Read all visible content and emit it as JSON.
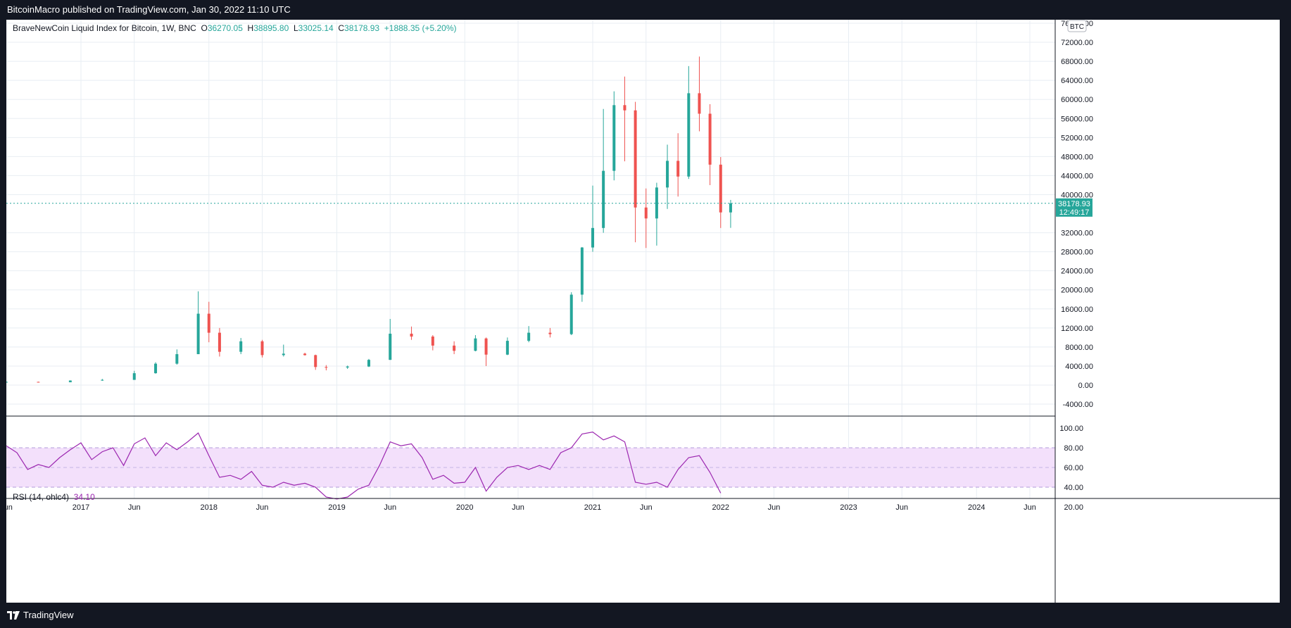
{
  "header": {
    "publisher": "BitcoinMacro published on TradingView.com, Jan 30, 2022 11:10 UTC"
  },
  "footer": {
    "brand": "TradingView"
  },
  "legend": {
    "symbol": "BraveNewCoin Liquid Index for Bitcoin, 1W, BNC",
    "open_label": "O",
    "open": "36270.05",
    "high_label": "H",
    "high": "38895.80",
    "low_label": "L",
    "low": "33025.14",
    "close_label": "C",
    "close": "38178.93",
    "change": "+1888.35 (+5.20%)"
  },
  "rsi_legend": {
    "label": "RSI (14, ohlc4)",
    "value": "34.10"
  },
  "price_badge": {
    "price": "38178.93",
    "countdown": "12:49:17"
  },
  "currency_badge": "BTC",
  "colors": {
    "up": "#26a69a",
    "down": "#ef5350",
    "rsi": "#9c27b0",
    "rsi_band": "#f3e0fb",
    "grid": "#e8eef3",
    "background": "#ffffff"
  },
  "chart_data": [
    {
      "type": "candlestick",
      "title": "BraveNewCoin Liquid Index for Bitcoin, 1W, BNC",
      "x_axis": {
        "ticks": [
          "Jun",
          "2017",
          "Jun",
          "2018",
          "Jun",
          "2019",
          "Jun",
          "2020",
          "Jun",
          "2021",
          "Jun",
          "2022",
          "Jun",
          "2023",
          "Jun",
          "2024",
          "Jun"
        ]
      },
      "y_axis": {
        "ticks": [
          "-4000.00",
          "0.00",
          "4000.00",
          "8000.00",
          "12000.00",
          "16000.00",
          "20000.00",
          "24000.00",
          "28000.00",
          "32000.00",
          "40000.00",
          "44000.00",
          "48000.00",
          "52000.00",
          "56000.00",
          "60000.00",
          "64000.00",
          "68000.00",
          "72000.00",
          "76000.00"
        ],
        "range": [
          -5500,
          78000
        ]
      },
      "grid": true,
      "last_price": 38178.93,
      "series": [
        {
          "values": [
            {
              "date": "2016-06",
              "open": 600,
              "high": 780,
              "low": 540,
              "close": 680
            },
            {
              "date": "2016-09",
              "open": 680,
              "high": 720,
              "low": 600,
              "close": 610
            },
            {
              "date": "2016-12",
              "open": 610,
              "high": 1000,
              "low": 600,
              "close": 960
            },
            {
              "date": "2017-03",
              "open": 960,
              "high": 1300,
              "low": 900,
              "close": 1100
            },
            {
              "date": "2017-06",
              "open": 1100,
              "high": 3000,
              "low": 1100,
              "close": 2500
            },
            {
              "date": "2017-08",
              "open": 2500,
              "high": 4800,
              "low": 2400,
              "close": 4500
            },
            {
              "date": "2017-10",
              "open": 4500,
              "high": 7500,
              "low": 4300,
              "close": 6500
            },
            {
              "date": "2017-12",
              "open": 6500,
              "high": 19700,
              "low": 6500,
              "close": 15000
            },
            {
              "date": "2018-01",
              "open": 15000,
              "high": 17500,
              "low": 9000,
              "close": 11000
            },
            {
              "date": "2018-02",
              "open": 11000,
              "high": 12000,
              "low": 6000,
              "close": 7000
            },
            {
              "date": "2018-04",
              "open": 7000,
              "high": 9900,
              "low": 6500,
              "close": 9200
            },
            {
              "date": "2018-06",
              "open": 9200,
              "high": 9500,
              "low": 5800,
              "close": 6300
            },
            {
              "date": "2018-08",
              "open": 6300,
              "high": 8500,
              "low": 6000,
              "close": 6600
            },
            {
              "date": "2018-10",
              "open": 6600,
              "high": 6800,
              "low": 6200,
              "close": 6300
            },
            {
              "date": "2018-11",
              "open": 6300,
              "high": 6400,
              "low": 3200,
              "close": 3800
            },
            {
              "date": "2018-12",
              "open": 3800,
              "high": 4200,
              "low": 3100,
              "close": 3700
            },
            {
              "date": "2019-02",
              "open": 3700,
              "high": 4100,
              "low": 3400,
              "close": 3900
            },
            {
              "date": "2019-04",
              "open": 3900,
              "high": 5500,
              "low": 3800,
              "close": 5300
            },
            {
              "date": "2019-06",
              "open": 5300,
              "high": 13900,
              "low": 5300,
              "close": 10800
            },
            {
              "date": "2019-08",
              "open": 10800,
              "high": 12300,
              "low": 9500,
              "close": 10200
            },
            {
              "date": "2019-10",
              "open": 10200,
              "high": 10500,
              "low": 7300,
              "close": 8300
            },
            {
              "date": "2019-12",
              "open": 8300,
              "high": 9200,
              "low": 6500,
              "close": 7200
            },
            {
              "date": "2020-02",
              "open": 7200,
              "high": 10500,
              "low": 7100,
              "close": 9800
            },
            {
              "date": "2020-03",
              "open": 9800,
              "high": 10000,
              "low": 4000,
              "close": 6400
            },
            {
              "date": "2020-05",
              "open": 6400,
              "high": 10000,
              "low": 6300,
              "close": 9300
            },
            {
              "date": "2020-07",
              "open": 9300,
              "high": 12400,
              "low": 9000,
              "close": 11000
            },
            {
              "date": "2020-09",
              "open": 11000,
              "high": 12000,
              "low": 10000,
              "close": 10700
            },
            {
              "date": "2020-11",
              "open": 10700,
              "high": 19500,
              "low": 10500,
              "close": 19000
            },
            {
              "date": "2020-12",
              "open": 19000,
              "high": 29000,
              "low": 17500,
              "close": 28900
            },
            {
              "date": "2021-01",
              "open": 28900,
              "high": 41900,
              "low": 28000,
              "close": 33000
            },
            {
              "date": "2021-02",
              "open": 33000,
              "high": 58000,
              "low": 32000,
              "close": 45000
            },
            {
              "date": "2021-03",
              "open": 45000,
              "high": 61700,
              "low": 43000,
              "close": 58800
            },
            {
              "date": "2021-04",
              "open": 58800,
              "high": 64800,
              "low": 47000,
              "close": 57700
            },
            {
              "date": "2021-05",
              "open": 57700,
              "high": 59500,
              "low": 30000,
              "close": 37300
            },
            {
              "date": "2021-06",
              "open": 37300,
              "high": 41300,
              "low": 28800,
              "close": 35000
            },
            {
              "date": "2021-07",
              "open": 35000,
              "high": 42500,
              "low": 29300,
              "close": 41500
            },
            {
              "date": "2021-08",
              "open": 41500,
              "high": 50500,
              "low": 37000,
              "close": 47100
            },
            {
              "date": "2021-09",
              "open": 47100,
              "high": 52900,
              "low": 39600,
              "close": 43800
            },
            {
              "date": "2021-10",
              "open": 43800,
              "high": 67000,
              "low": 43300,
              "close": 61300
            },
            {
              "date": "2021-11",
              "open": 61300,
              "high": 69000,
              "low": 53300,
              "close": 57000
            },
            {
              "date": "2021-12",
              "open": 57000,
              "high": 59000,
              "low": 42000,
              "close": 46300
            },
            {
              "date": "2022-01",
              "open": 46300,
              "high": 47900,
              "low": 33000,
              "close": 36270
            },
            {
              "date": "2022-01-30",
              "open": 36270.05,
              "high": 38895.8,
              "low": 33025.14,
              "close": 38178.93
            }
          ]
        }
      ]
    },
    {
      "type": "line",
      "title": "RSI (14, ohlc4)",
      "y_axis": {
        "ticks": [
          "20.00",
          "40.00",
          "60.00",
          "80.00",
          "100.00"
        ],
        "range": [
          18,
          102
        ]
      },
      "bands": {
        "upper": 70,
        "middle": 50,
        "lower": 30
      },
      "series": [
        {
          "name": "RSI (14, ohlc4)",
          "x": [
            "2016-06",
            "2016-07",
            "2016-08",
            "2016-09",
            "2016-10",
            "2016-11",
            "2016-12",
            "2017-01",
            "2017-02",
            "2017-03",
            "2017-04",
            "2017-05",
            "2017-06",
            "2017-07",
            "2017-08",
            "2017-09",
            "2017-10",
            "2017-11",
            "2017-12",
            "2018-01",
            "2018-02",
            "2018-03",
            "2018-04",
            "2018-05",
            "2018-06",
            "2018-07",
            "2018-08",
            "2018-09",
            "2018-10",
            "2018-11",
            "2018-12",
            "2019-01",
            "2019-02",
            "2019-03",
            "2019-04",
            "2019-05",
            "2019-06",
            "2019-07",
            "2019-08",
            "2019-09",
            "2019-10",
            "2019-11",
            "2019-12",
            "2020-01",
            "2020-02",
            "2020-03",
            "2020-04",
            "2020-05",
            "2020-06",
            "2020-07",
            "2020-08",
            "2020-09",
            "2020-10",
            "2020-11",
            "2020-12",
            "2021-01",
            "2021-02",
            "2021-03",
            "2021-04",
            "2021-05",
            "2021-06",
            "2021-07",
            "2021-08",
            "2021-09",
            "2021-10",
            "2021-11",
            "2021-12",
            "2022-01"
          ],
          "values": [
            82,
            75,
            58,
            63,
            60,
            70,
            78,
            85,
            68,
            76,
            80,
            62,
            84,
            90,
            72,
            85,
            78,
            86,
            95,
            72,
            50,
            52,
            48,
            56,
            42,
            40,
            45,
            42,
            44,
            40,
            30,
            28,
            30,
            38,
            42,
            62,
            86,
            82,
            84,
            70,
            48,
            52,
            44,
            45,
            60,
            36,
            50,
            60,
            62,
            58,
            62,
            58,
            75,
            80,
            94,
            96,
            88,
            92,
            86,
            45,
            43,
            45,
            40,
            58,
            70,
            72,
            55,
            34
          ]
        }
      ]
    }
  ]
}
